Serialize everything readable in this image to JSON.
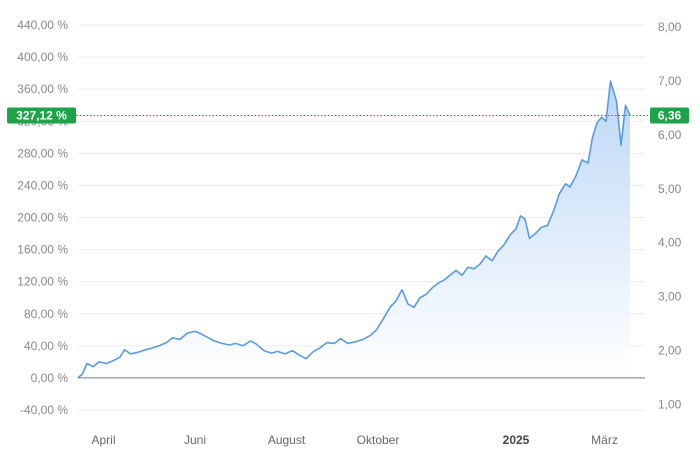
{
  "chart_data": {
    "type": "area",
    "title": "",
    "xlabel": "",
    "ylabel": "",
    "grid": true,
    "y_left": {
      "ticks": [
        "440,00 %",
        "400,00 %",
        "360,00 %",
        "320,00 %",
        "280,00 %",
        "240,00 %",
        "200,00 %",
        "160,00 %",
        "120,00 %",
        "80,00 %",
        "40,00 %",
        "0,00 %",
        "-40,00 %"
      ],
      "tick_values": [
        440,
        400,
        360,
        320,
        280,
        240,
        200,
        160,
        120,
        80,
        40,
        0,
        -40
      ],
      "range": [
        -40,
        440
      ]
    },
    "y_right": {
      "ticks": [
        "8,00",
        "7,00",
        "6,00",
        "5,00",
        "4,00",
        "3,00",
        "2,00",
        "1,00"
      ],
      "tick_values": [
        8,
        7,
        6,
        5,
        4,
        3,
        2,
        1
      ],
      "range": [
        1,
        8
      ]
    },
    "x_axis": {
      "range": [
        "2024-03-15",
        "2025-03-28"
      ],
      "labels": [
        {
          "text": "April",
          "date": "2024-04-01",
          "bold": false
        },
        {
          "text": "Juni",
          "date": "2024-06-01",
          "bold": false
        },
        {
          "text": "August",
          "date": "2024-08-01",
          "bold": false
        },
        {
          "text": "Oktober",
          "date": "2024-10-01",
          "bold": false
        },
        {
          "text": "2025",
          "date": "2025-01-01",
          "bold": true
        },
        {
          "text": "März",
          "date": "2025-03-01",
          "bold": false
        }
      ]
    },
    "baseline": {
      "value": 0,
      "price": 1.49
    },
    "current": {
      "percent_label": "327,12 %",
      "price_label": "6,36",
      "percent": 327.12,
      "price": 6.36
    },
    "series": [
      {
        "points": [
          [
            "2024-03-15",
            0
          ],
          [
            "2024-03-18",
            5
          ],
          [
            "2024-03-21",
            18
          ],
          [
            "2024-03-25",
            14
          ],
          [
            "2024-03-29",
            20
          ],
          [
            "2024-04-03",
            18
          ],
          [
            "2024-04-08",
            22
          ],
          [
            "2024-04-12",
            26
          ],
          [
            "2024-04-15",
            35
          ],
          [
            "2024-04-19",
            30
          ],
          [
            "2024-04-24",
            32
          ],
          [
            "2024-04-29",
            35
          ],
          [
            "2024-05-03",
            37
          ],
          [
            "2024-05-08",
            40
          ],
          [
            "2024-05-13",
            44
          ],
          [
            "2024-05-17",
            50
          ],
          [
            "2024-05-22",
            48
          ],
          [
            "2024-05-27",
            56
          ],
          [
            "2024-06-01",
            58
          ],
          [
            "2024-06-05",
            55
          ],
          [
            "2024-06-10",
            50
          ],
          [
            "2024-06-14",
            46
          ],
          [
            "2024-06-19",
            43
          ],
          [
            "2024-06-24",
            41
          ],
          [
            "2024-06-28",
            43
          ],
          [
            "2024-07-03",
            40
          ],
          [
            "2024-07-08",
            46
          ],
          [
            "2024-07-12",
            42
          ],
          [
            "2024-07-17",
            34
          ],
          [
            "2024-07-22",
            31
          ],
          [
            "2024-07-26",
            33
          ],
          [
            "2024-07-31",
            30
          ],
          [
            "2024-08-05",
            34
          ],
          [
            "2024-08-09",
            29
          ],
          [
            "2024-08-14",
            24
          ],
          [
            "2024-08-19",
            33
          ],
          [
            "2024-08-23",
            37
          ],
          [
            "2024-08-28",
            44
          ],
          [
            "2024-09-02",
            43
          ],
          [
            "2024-09-06",
            49
          ],
          [
            "2024-09-11",
            43
          ],
          [
            "2024-09-16",
            45
          ],
          [
            "2024-09-21",
            48
          ],
          [
            "2024-09-26",
            53
          ],
          [
            "2024-09-30",
            60
          ],
          [
            "2024-10-04",
            72
          ],
          [
            "2024-10-09",
            88
          ],
          [
            "2024-10-13",
            96
          ],
          [
            "2024-10-17",
            110
          ],
          [
            "2024-10-21",
            92
          ],
          [
            "2024-10-25",
            88
          ],
          [
            "2024-10-29",
            100
          ],
          [
            "2024-11-02",
            104
          ],
          [
            "2024-11-06",
            112
          ],
          [
            "2024-11-10",
            118
          ],
          [
            "2024-11-14",
            122
          ],
          [
            "2024-11-18",
            128
          ],
          [
            "2024-11-22",
            134
          ],
          [
            "2024-11-26",
            128
          ],
          [
            "2024-11-30",
            138
          ],
          [
            "2024-12-04",
            136
          ],
          [
            "2024-12-08",
            142
          ],
          [
            "2024-12-12",
            152
          ],
          [
            "2024-12-16",
            146
          ],
          [
            "2024-12-20",
            158
          ],
          [
            "2024-12-24",
            166
          ],
          [
            "2024-12-28",
            178
          ],
          [
            "2025-01-01",
            186
          ],
          [
            "2025-01-04",
            202
          ],
          [
            "2025-01-07",
            198
          ],
          [
            "2025-01-10",
            174
          ],
          [
            "2025-01-14",
            180
          ],
          [
            "2025-01-18",
            188
          ],
          [
            "2025-01-22",
            190
          ],
          [
            "2025-01-26",
            208
          ],
          [
            "2025-01-30",
            230
          ],
          [
            "2025-02-03",
            242
          ],
          [
            "2025-02-06",
            238
          ],
          [
            "2025-02-10",
            252
          ],
          [
            "2025-02-14",
            272
          ],
          [
            "2025-02-18",
            268
          ],
          [
            "2025-02-21",
            300
          ],
          [
            "2025-02-24",
            318
          ],
          [
            "2025-02-27",
            325
          ],
          [
            "2025-03-02",
            320
          ],
          [
            "2025-03-05",
            370
          ],
          [
            "2025-03-09",
            345
          ],
          [
            "2025-03-12",
            290
          ],
          [
            "2025-03-15",
            340
          ],
          [
            "2025-03-18",
            327.12
          ]
        ]
      }
    ],
    "colors": {
      "line": "#5b9bdc",
      "fill_top": "#b8d5f5",
      "fill_bottom": "#ffffff",
      "badge": "#1ea34a",
      "dotted_line": "#1e8a3e",
      "grid": "#ececec",
      "baseline": "#7a7a7a",
      "tick_text": "#888888",
      "axis_text": "#666666"
    }
  }
}
